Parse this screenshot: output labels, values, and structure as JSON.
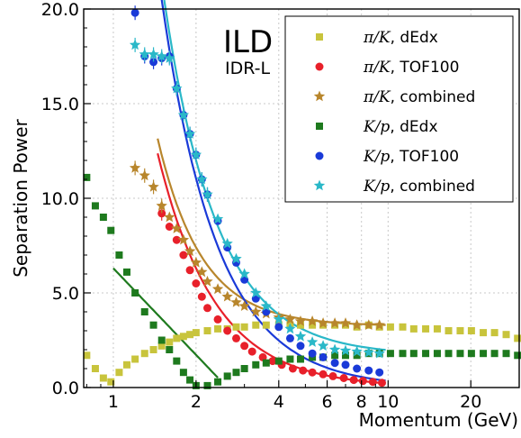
{
  "chart_data": {
    "type": "scatter",
    "xlabel": "Momentum (GeV)",
    "ylabel": "Separation Power",
    "xscale": "log",
    "xlim": [
      0.78,
      30
    ],
    "ylim": [
      0,
      20
    ],
    "grid": true,
    "legend_placement": "top-right",
    "xticks": [
      {
        "value": 1,
        "label": "1"
      },
      {
        "value": 2,
        "label": "2"
      },
      {
        "value": 4,
        "label": "4"
      },
      {
        "value": 6,
        "label": "6"
      },
      {
        "value": 8,
        "label": "8"
      },
      {
        "value": 10,
        "label": "10"
      },
      {
        "value": 20,
        "label": "20"
      }
    ],
    "yticks": [
      {
        "value": 0,
        "label": "0.0"
      },
      {
        "value": 5,
        "label": "5.0"
      },
      {
        "value": 10,
        "label": "10.0"
      },
      {
        "value": 15,
        "label": "15.0"
      },
      {
        "value": 20,
        "label": "20.0"
      }
    ],
    "annotations": {
      "title": "ILD",
      "subtitle": "IDR-L"
    },
    "series": [
      {
        "name": "π/K, dEdx",
        "math": "π/K",
        "suffix": ", dEdx",
        "marker": "square",
        "color": "#c8c43c",
        "x": [
          0.8,
          0.86,
          0.92,
          0.98,
          1.05,
          1.12,
          1.2,
          1.3,
          1.4,
          1.5,
          1.6,
          1.7,
          1.8,
          1.9,
          2.0,
          2.2,
          2.4,
          2.6,
          2.8,
          3.0,
          3.3,
          3.6,
          4.0,
          4.4,
          4.8,
          5.3,
          5.8,
          6.4,
          7.0,
          7.7,
          8.5,
          9.3,
          10.2,
          11.3,
          12.4,
          13.7,
          15.1,
          16.6,
          18.3,
          20.1,
          22.2,
          24.4,
          26.9,
          29.6
        ],
        "y": [
          1.7,
          1.0,
          0.5,
          0.3,
          0.8,
          1.2,
          1.5,
          1.8,
          2.0,
          2.2,
          2.4,
          2.6,
          2.7,
          2.8,
          2.9,
          3.0,
          3.1,
          3.1,
          3.2,
          3.2,
          3.3,
          3.3,
          3.3,
          3.3,
          3.3,
          3.3,
          3.3,
          3.3,
          3.3,
          3.2,
          3.3,
          3.2,
          3.2,
          3.2,
          3.1,
          3.1,
          3.1,
          3.0,
          3.0,
          3.0,
          2.9,
          2.9,
          2.8,
          2.6
        ]
      },
      {
        "name": "π/K, TOF100",
        "math": "π/K",
        "suffix": ", TOF100",
        "marker": "circle",
        "color": "#e8202a",
        "x": [
          1.5,
          1.6,
          1.7,
          1.8,
          1.9,
          2.0,
          2.1,
          2.2,
          2.4,
          2.6,
          2.8,
          3.0,
          3.2,
          3.5,
          3.8,
          4.1,
          4.5,
          4.9,
          5.3,
          5.8,
          6.3,
          6.9,
          7.5,
          8.1,
          8.8,
          9.5
        ],
        "y": [
          9.2,
          8.5,
          7.8,
          7.0,
          6.2,
          5.5,
          4.8,
          4.2,
          3.6,
          3.0,
          2.6,
          2.2,
          1.9,
          1.6,
          1.4,
          1.2,
          1.0,
          0.9,
          0.8,
          0.7,
          0.6,
          0.5,
          0.4,
          0.35,
          0.3,
          0.25
        ],
        "fit": {
          "x0": 1.45,
          "x1": 9.8,
          "a": 27,
          "b": 2.1
        }
      },
      {
        "name": "π/K, combined",
        "math": "π/K",
        "suffix": ", combined",
        "marker": "star",
        "color": "#b8862c",
        "x": [
          1.2,
          1.3,
          1.4,
          1.5,
          1.6,
          1.7,
          1.8,
          1.9,
          2.0,
          2.1,
          2.2,
          2.4,
          2.6,
          2.8,
          3.0,
          3.3,
          3.6,
          4.0,
          4.4,
          4.8,
          5.3,
          5.8,
          6.4,
          7.0,
          7.7,
          8.5,
          9.3
        ],
        "y": [
          11.6,
          11.2,
          10.6,
          9.6,
          9.0,
          8.4,
          7.8,
          7.2,
          6.6,
          6.1,
          5.6,
          5.2,
          4.8,
          4.5,
          4.3,
          4.0,
          3.9,
          3.7,
          3.6,
          3.5,
          3.5,
          3.4,
          3.4,
          3.4,
          3.3,
          3.3,
          3.3
        ],
        "fit": {
          "x0": 1.45,
          "x1": 9.8,
          "a": 27,
          "b": 2.7,
          "c": 3.25
        }
      },
      {
        "name": "K/p, dEdx",
        "math": "K/p",
        "suffix": ", dEdx",
        "marker": "square",
        "color": "#1e7a1e",
        "x": [
          0.8,
          0.86,
          0.92,
          0.98,
          1.05,
          1.12,
          1.2,
          1.3,
          1.4,
          1.5,
          1.6,
          1.7,
          1.8,
          1.9,
          2.0,
          2.2,
          2.4,
          2.6,
          2.8,
          3.0,
          3.3,
          3.6,
          4.0,
          4.4,
          4.8,
          5.3,
          5.8,
          6.4,
          7.0,
          7.7,
          8.5,
          9.3,
          10.2,
          11.3,
          12.4,
          13.7,
          15.1,
          16.6,
          18.3,
          20.1,
          22.2,
          24.4,
          26.9,
          29.6
        ],
        "y": [
          11.1,
          9.6,
          9.0,
          8.3,
          7.0,
          6.1,
          5.0,
          4.0,
          3.3,
          2.5,
          2.0,
          1.4,
          0.8,
          0.4,
          0.1,
          0.1,
          0.3,
          0.6,
          0.8,
          1.0,
          1.2,
          1.3,
          1.4,
          1.5,
          1.5,
          1.6,
          1.6,
          1.7,
          1.7,
          1.7,
          1.8,
          1.8,
          1.8,
          1.8,
          1.8,
          1.8,
          1.8,
          1.8,
          1.8,
          1.8,
          1.8,
          1.8,
          1.8,
          1.7
        ],
        "fit": {
          "x0": 1.0,
          "x1": 2.4,
          "a": 6.3,
          "b": -6.6
        }
      },
      {
        "name": "K/p, TOF100",
        "math": "K/p",
        "suffix": ", TOF100",
        "marker": "circle",
        "color": "#1a3ad8",
        "x": [
          1.2,
          1.3,
          1.4,
          1.5,
          1.6,
          1.7,
          1.8,
          1.9,
          2.0,
          2.1,
          2.2,
          2.4,
          2.6,
          2.8,
          3.0,
          3.3,
          3.6,
          4.0,
          4.4,
          4.8,
          5.3,
          5.8,
          6.4,
          7.0,
          7.7,
          8.5,
          9.3
        ],
        "y": [
          19.8,
          17.5,
          17.2,
          17.4,
          17.5,
          15.8,
          14.4,
          13.4,
          12.3,
          11.0,
          10.2,
          8.8,
          7.4,
          6.6,
          5.7,
          4.7,
          4.0,
          3.2,
          2.6,
          2.2,
          1.8,
          1.6,
          1.3,
          1.2,
          1.0,
          0.9,
          0.8
        ],
        "fit": {
          "x0": 1.45,
          "x1": 9.8,
          "a": 49,
          "b": 2.15
        }
      },
      {
        "name": "K/p, combined",
        "math": "K/p",
        "suffix": ", combined",
        "marker": "star",
        "color": "#2ab8c8",
        "x": [
          1.2,
          1.3,
          1.4,
          1.5,
          1.6,
          1.7,
          1.8,
          1.9,
          2.0,
          2.1,
          2.2,
          2.4,
          2.6,
          2.8,
          3.0,
          3.3,
          3.6,
          4.0,
          4.4,
          4.8,
          5.3,
          5.8,
          6.4,
          7.0,
          7.7,
          8.5,
          9.3
        ],
        "y": [
          18.1,
          17.6,
          17.6,
          17.5,
          17.4,
          15.8,
          14.4,
          13.4,
          12.3,
          11.0,
          10.2,
          8.9,
          7.6,
          6.8,
          6.0,
          5.0,
          4.3,
          3.6,
          3.1,
          2.7,
          2.4,
          2.2,
          2.0,
          1.95,
          1.9,
          1.85,
          1.8
        ],
        "fit": {
          "x0": 1.45,
          "x1": 9.8,
          "a": 49,
          "b": 2.25,
          "c": 1.7
        }
      }
    ]
  }
}
